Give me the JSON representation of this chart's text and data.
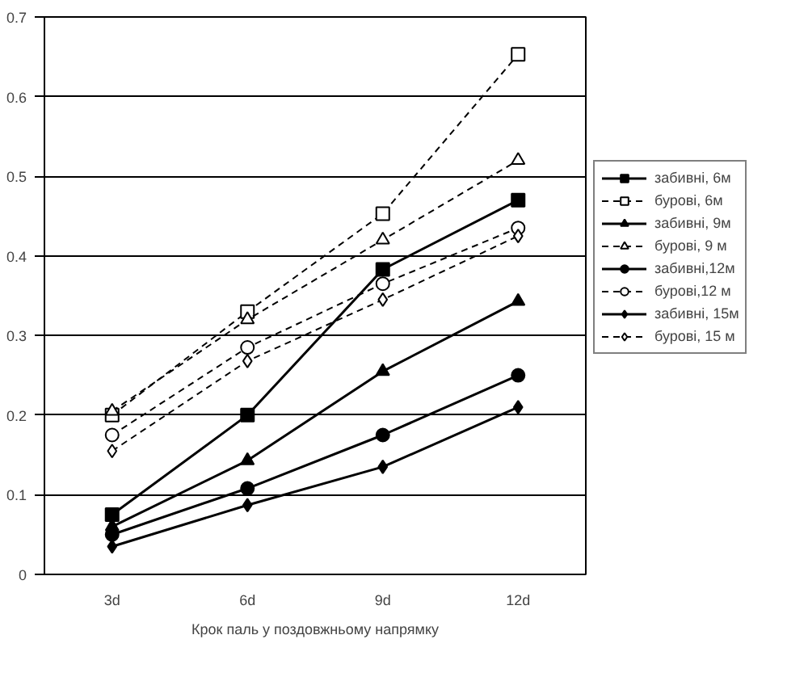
{
  "chart_data": {
    "type": "line",
    "xlabel": "Крок паль у поздовжньому напрямку",
    "categories": [
      "3d",
      "6d",
      "9d",
      "12d"
    ],
    "ylim": [
      0,
      0.7
    ],
    "yticks": [
      0,
      0.1,
      0.2,
      0.3,
      0.4,
      0.5,
      0.6,
      0.7
    ],
    "grid": "y",
    "legend": "right",
    "series": [
      {
        "name": "забивні, 6м",
        "color": "#000000",
        "marker": "square",
        "line_style": "solid",
        "values": [
          0.075,
          0.2,
          0.383,
          0.47
        ]
      },
      {
        "name": "бурові, 6м",
        "color": "#000000",
        "marker": "square",
        "line_style": "dashed",
        "values": [
          0.2,
          0.33,
          0.453,
          0.653
        ]
      },
      {
        "name": "забивні, 9м",
        "color": "#000000",
        "marker": "triangle",
        "line_style": "solid",
        "values": [
          0.06,
          0.143,
          0.255,
          0.343
        ]
      },
      {
        "name": "бурові, 9 м",
        "color": "#000000",
        "marker": "triangle",
        "line_style": "dashed",
        "values": [
          0.205,
          0.32,
          0.42,
          0.52
        ]
      },
      {
        "name": "забивні,12м",
        "color": "#000000",
        "marker": "circle",
        "line_style": "solid",
        "values": [
          0.05,
          0.108,
          0.175,
          0.25
        ]
      },
      {
        "name": "бурові,12 м",
        "color": "#000000",
        "marker": "circle",
        "line_style": "dashed",
        "values": [
          0.175,
          0.285,
          0.365,
          0.435
        ]
      },
      {
        "name": "забивні, 15м",
        "color": "#000000",
        "marker": "diamond",
        "line_style": "solid",
        "values": [
          0.035,
          0.087,
          0.135,
          0.21
        ]
      },
      {
        "name": "бурові, 15 м",
        "color": "#000000",
        "marker": "diamond",
        "line_style": "dashed",
        "values": [
          0.155,
          0.268,
          0.345,
          0.425
        ]
      }
    ]
  }
}
